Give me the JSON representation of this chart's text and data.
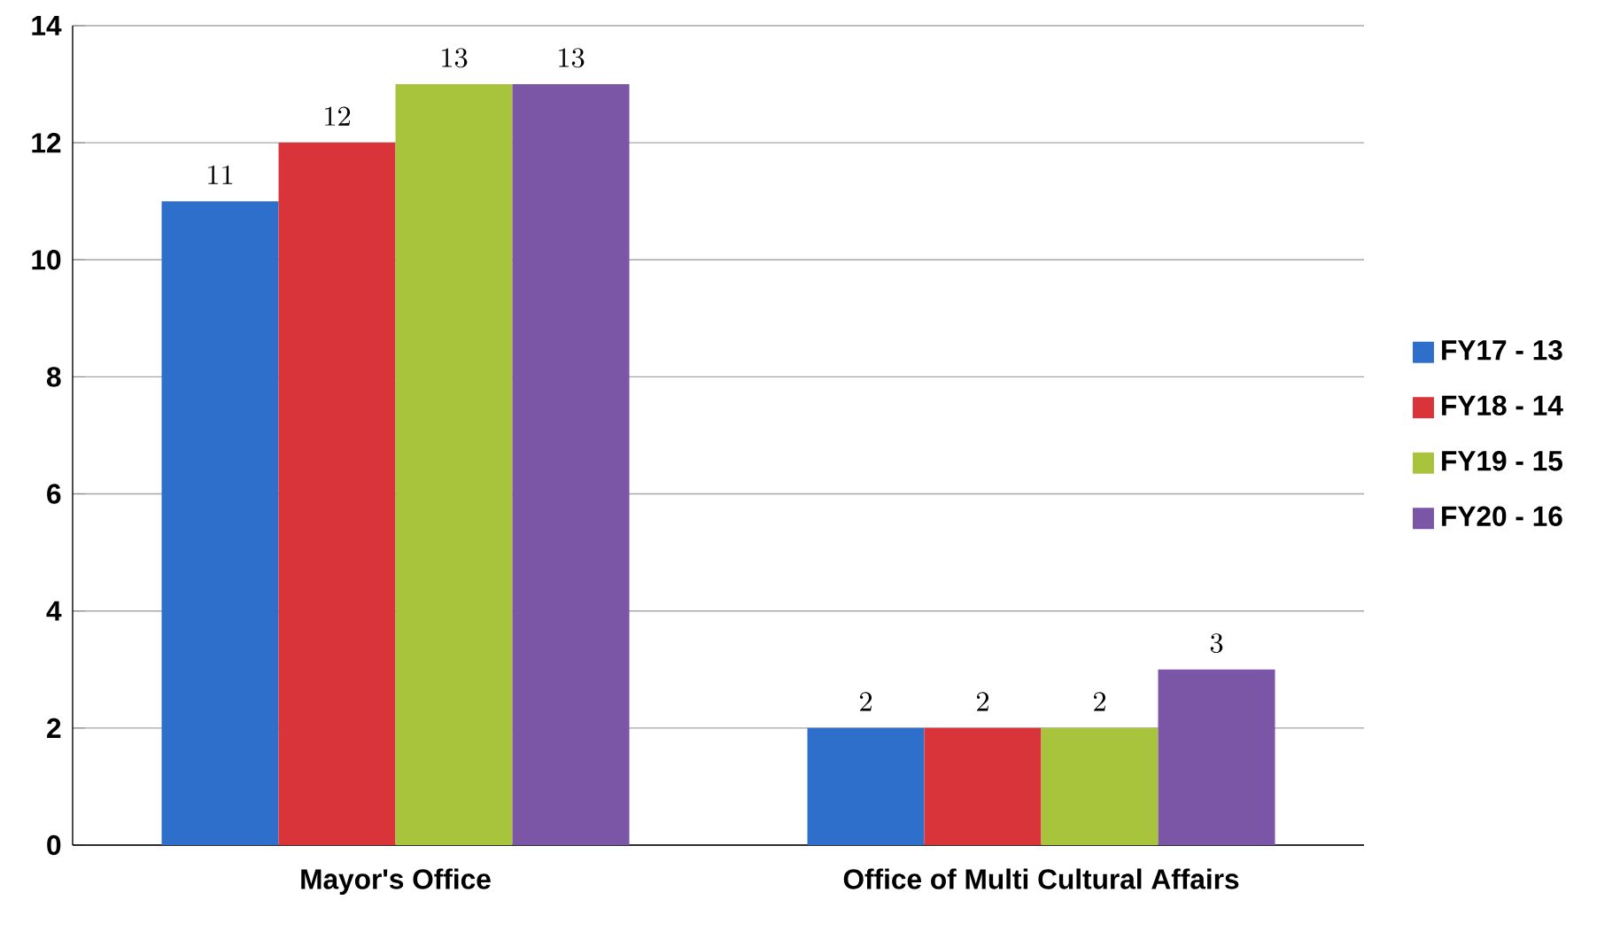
{
  "chart_data": {
    "type": "bar",
    "categories": [
      "Mayor's Office",
      "Office of Multi Cultural Affairs"
    ],
    "series": [
      {
        "name": "FY17 - 13",
        "color": "#2f6fcc",
        "values": [
          11,
          2
        ]
      },
      {
        "name": "FY18 - 14",
        "color": "#d8343a",
        "values": [
          12,
          2
        ]
      },
      {
        "name": "FY19 - 15",
        "color": "#a8c43c",
        "values": [
          13,
          2
        ]
      },
      {
        "name": "FY20 - 16",
        "color": "#7b55a6",
        "values": [
          13,
          3
        ]
      }
    ],
    "ylim": [
      0,
      14
    ],
    "yticks": [
      0,
      2,
      4,
      6,
      8,
      10,
      12,
      14
    ],
    "grid": "y",
    "legend": "right",
    "data_labels": true
  }
}
